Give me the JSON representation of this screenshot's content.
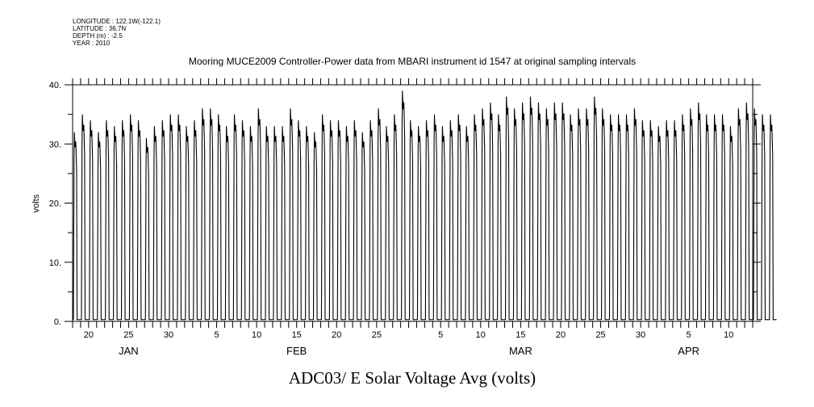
{
  "meta": {
    "longitude": "LONGITUDE : 122.1W(-122.1)",
    "latitude": "LATITUDE : 36.7N",
    "depth": "DEPTH (m) : -2.5",
    "year": "YEAR : 2010"
  },
  "chart_data": {
    "type": "line",
    "title": "Mooring MUCE2009 Controller-Power data from MBARI instrument id 1547 at original sampling intervals",
    "xlabel": "ADC03/ E Solar Voltage Avg (volts)",
    "ylabel": "volts",
    "ylim": [
      0,
      40
    ],
    "yticks": [
      "0.",
      "10.",
      "20.",
      "30.",
      "40."
    ],
    "xlim": [
      "2010-01-18",
      "2010-04-13"
    ],
    "day_ticks": [
      {
        "label": "20",
        "date": "2010-01-20"
      },
      {
        "label": "25",
        "date": "2010-01-25"
      },
      {
        "label": "30",
        "date": "2010-01-30"
      },
      {
        "label": "5",
        "date": "2010-02-05"
      },
      {
        "label": "10",
        "date": "2010-02-10"
      },
      {
        "label": "15",
        "date": "2010-02-15"
      },
      {
        "label": "20",
        "date": "2010-02-20"
      },
      {
        "label": "25",
        "date": "2010-02-25"
      },
      {
        "label": "5",
        "date": "2010-03-05"
      },
      {
        "label": "10",
        "date": "2010-03-10"
      },
      {
        "label": "15",
        "date": "2010-03-15"
      },
      {
        "label": "20",
        "date": "2010-03-20"
      },
      {
        "label": "25",
        "date": "2010-03-25"
      },
      {
        "label": "30",
        "date": "2010-03-30"
      },
      {
        "label": "5",
        "date": "2010-04-05"
      },
      {
        "label": "10",
        "date": "2010-04-10"
      }
    ],
    "month_labels": [
      {
        "label": "JAN",
        "date": "2010-01-25"
      },
      {
        "label": "FEB",
        "date": "2010-02-15"
      },
      {
        "label": "MAR",
        "date": "2010-03-15"
      },
      {
        "label": "APR",
        "date": "2010-04-05"
      }
    ],
    "grid": false,
    "series": [
      {
        "pattern": "daily solar cycle: near 0 V at night, rising to a daytime peak",
        "daily_peaks_volts": [
          32,
          35,
          34,
          32,
          34,
          33,
          34,
          35,
          34,
          31,
          33,
          34,
          35,
          35,
          33,
          34,
          36,
          36,
          35,
          33,
          35,
          34,
          33,
          36,
          33,
          33,
          33,
          36,
          34,
          33,
          32,
          35,
          34,
          34,
          33,
          34,
          32,
          34,
          36,
          33,
          35,
          39,
          34,
          33,
          34,
          35,
          33,
          34,
          35,
          33,
          35,
          36,
          37,
          35,
          38,
          36,
          37,
          38,
          37,
          36,
          37,
          37,
          35,
          36,
          36,
          38,
          36,
          35,
          35,
          35,
          36,
          34,
          34,
          33,
          34,
          34,
          35,
          36,
          37,
          35,
          35,
          35,
          33,
          36,
          37,
          36,
          35,
          35
        ]
      }
    ]
  }
}
